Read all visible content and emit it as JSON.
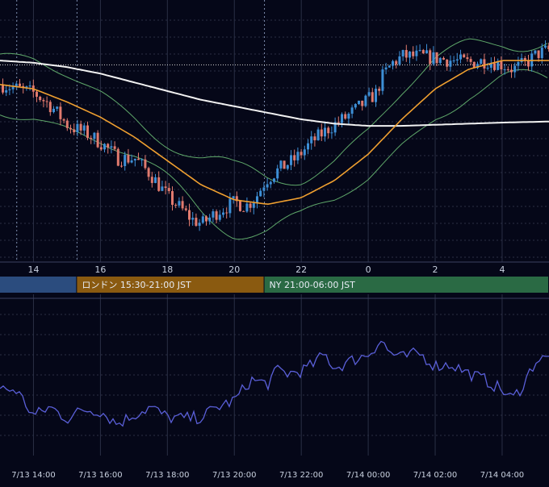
{
  "colors": {
    "background": "#050718",
    "grid": "#2a2f45",
    "candle_up": "#3d8fd6",
    "candle_down": "#e07a6e",
    "sma_short": "#f0a030",
    "sma_long": "#f2f2f2",
    "bollinger": "#5fa86a",
    "oscillator": "#5a5fd8",
    "session_tokyo": "#2b4c7e",
    "session_london": "#8a5a10",
    "session_ny": "#2a6a44",
    "axis_text": "#c9d1e0",
    "current_price_line": "#d0d0d0"
  },
  "sessions": [
    {
      "label": "",
      "color_key": "session_tokyo"
    },
    {
      "label": "ロンドン 15:30-21:00 JST",
      "color_key": "session_london"
    },
    {
      "label": "NY 21:00-06:00 JST",
      "color_key": "session_ny"
    }
  ],
  "chart_data": {
    "type": "candlestick",
    "x_tick_labels_top": [
      "14",
      "16",
      "18",
      "20",
      "22",
      "0",
      "2",
      "4"
    ],
    "x_tick_labels_bottom": [
      "7/13 14:00",
      "7/13 16:00",
      "7/13 18:00",
      "7/13 20:00",
      "7/13 22:00",
      "7/14 00:00",
      "7/14 02:00",
      "7/14 04:00"
    ],
    "x_range_hours": [
      13.0,
      29.4
    ],
    "price_range": [
      0,
      100
    ],
    "oscillator_range": [
      0,
      100
    ],
    "current_price": 85,
    "session_bounds_hours": [
      [
        13.0,
        15.3
      ],
      [
        15.3,
        20.9
      ],
      [
        20.9,
        29.4
      ]
    ],
    "candle_anchors": [
      [
        13.0,
        76
      ],
      [
        13.5,
        74
      ],
      [
        14.0,
        72
      ],
      [
        14.5,
        66
      ],
      [
        15.0,
        57
      ],
      [
        15.5,
        54
      ],
      [
        16.0,
        49
      ],
      [
        16.5,
        42
      ],
      [
        17.0,
        42
      ],
      [
        17.5,
        34
      ],
      [
        18.0,
        24
      ],
      [
        18.3,
        20
      ],
      [
        18.7,
        14
      ],
      [
        19.0,
        12
      ],
      [
        19.5,
        18
      ],
      [
        20.0,
        22
      ],
      [
        20.3,
        20
      ],
      [
        20.6,
        24
      ],
      [
        20.9,
        32
      ],
      [
        21.3,
        37
      ],
      [
        21.8,
        42
      ],
      [
        22.3,
        50
      ],
      [
        22.8,
        56
      ],
      [
        23.3,
        61
      ],
      [
        23.8,
        67
      ],
      [
        24.2,
        72
      ],
      [
        24.4,
        80
      ],
      [
        24.7,
        86
      ],
      [
        25.0,
        89
      ],
      [
        25.5,
        89
      ],
      [
        26.0,
        88
      ],
      [
        26.5,
        87
      ],
      [
        27.0,
        86
      ],
      [
        27.5,
        87
      ],
      [
        28.0,
        85
      ],
      [
        28.3,
        83
      ],
      [
        28.7,
        86
      ],
      [
        29.0,
        90
      ],
      [
        29.4,
        92
      ]
    ],
    "sma_short_anchors": [
      [
        13.0,
        76
      ],
      [
        14.0,
        74
      ],
      [
        15.0,
        68
      ],
      [
        16.0,
        61
      ],
      [
        17.0,
        52
      ],
      [
        18.0,
        41
      ],
      [
        19.0,
        30
      ],
      [
        20.0,
        23
      ],
      [
        21.0,
        21
      ],
      [
        22.0,
        24
      ],
      [
        23.0,
        32
      ],
      [
        24.0,
        44
      ],
      [
        25.0,
        60
      ],
      [
        26.0,
        74
      ],
      [
        27.0,
        83
      ],
      [
        28.0,
        87
      ],
      [
        29.4,
        87
      ]
    ],
    "sma_long_anchors": [
      [
        13.0,
        87
      ],
      [
        14.0,
        86
      ],
      [
        15.0,
        84
      ],
      [
        16.0,
        81
      ],
      [
        17.0,
        77
      ],
      [
        18.0,
        73
      ],
      [
        19.0,
        69
      ],
      [
        20.0,
        66
      ],
      [
        21.0,
        63
      ],
      [
        22.0,
        60
      ],
      [
        23.0,
        58
      ],
      [
        24.0,
        57
      ],
      [
        25.0,
        57
      ],
      [
        26.0,
        57.5
      ],
      [
        27.0,
        58
      ],
      [
        28.0,
        58.5
      ],
      [
        29.4,
        59
      ]
    ],
    "oscillator_anchors": [
      [
        13.0,
        36
      ],
      [
        13.5,
        35
      ],
      [
        14.0,
        15
      ],
      [
        14.5,
        22
      ],
      [
        15.0,
        13
      ],
      [
        15.5,
        20
      ],
      [
        16.0,
        19
      ],
      [
        16.5,
        9
      ],
      [
        17.0,
        16
      ],
      [
        17.5,
        22
      ],
      [
        18.0,
        14
      ],
      [
        18.5,
        13
      ],
      [
        19.0,
        14
      ],
      [
        19.5,
        22
      ],
      [
        20.0,
        27
      ],
      [
        20.5,
        43
      ],
      [
        21.0,
        40
      ],
      [
        21.3,
        51
      ],
      [
        21.6,
        48
      ],
      [
        22.0,
        50
      ],
      [
        22.3,
        54
      ],
      [
        22.7,
        63
      ],
      [
        23.0,
        52
      ],
      [
        23.5,
        58
      ],
      [
        24.0,
        63
      ],
      [
        24.4,
        74
      ],
      [
        24.6,
        65
      ],
      [
        25.0,
        60
      ],
      [
        25.5,
        64
      ],
      [
        26.0,
        54
      ],
      [
        26.5,
        55
      ],
      [
        27.0,
        48
      ],
      [
        27.5,
        43
      ],
      [
        28.0,
        35
      ],
      [
        28.3,
        28
      ],
      [
        28.6,
        38
      ],
      [
        29.0,
        58
      ],
      [
        29.4,
        60
      ]
    ]
  }
}
